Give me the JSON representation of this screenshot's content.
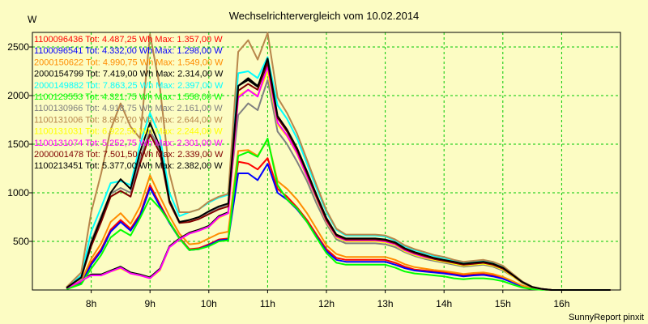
{
  "chart_data": {
    "type": "line",
    "title": "Wechselrichtervergleich vom 10.02.2014",
    "ylabel": "W",
    "footer": "SunnyReport pinxit",
    "xlim": [
      7.0,
      17.0
    ],
    "ylim": [
      0,
      2650
    ],
    "x_ticks": [
      8,
      9,
      10,
      11,
      12,
      13,
      14,
      15,
      16
    ],
    "x_tick_labels": [
      "8h",
      "9h",
      "10h",
      "11h",
      "12h",
      "13h",
      "14h",
      "15h",
      "16h"
    ],
    "y_ticks": [
      500,
      1000,
      1500,
      2000,
      2500
    ],
    "y_tick_labels": [
      "500",
      "1000",
      "1500",
      "2000",
      "2500"
    ],
    "grid": true,
    "x": [
      7.58,
      7.83,
      8.0,
      8.17,
      8.33,
      8.5,
      8.67,
      8.83,
      9.0,
      9.17,
      9.33,
      9.5,
      9.67,
      9.83,
      10.0,
      10.17,
      10.33,
      10.5,
      10.67,
      10.83,
      11.0,
      11.17,
      11.33,
      11.5,
      11.67,
      11.83,
      12.0,
      12.17,
      12.33,
      12.5,
      12.67,
      12.83,
      13.0,
      13.17,
      13.33,
      13.5,
      13.67,
      13.83,
      14.0,
      14.17,
      14.33,
      14.5,
      14.67,
      14.83,
      15.0,
      15.17,
      15.33,
      15.5,
      15.67,
      15.83,
      16.0,
      16.17,
      16.33,
      16.5,
      16.67,
      16.83
    ],
    "series": [
      {
        "name": "1100096436",
        "total": "4.487,25",
        "max": "1.357,00",
        "color": "#ff0000",
        "values": [
          10,
          80,
          280,
          420,
          620,
          720,
          630,
          780,
          1080,
          880,
          700,
          540,
          420,
          430,
          470,
          520,
          530,
          1320,
          1300,
          1240,
          1357,
          1040,
          960,
          850,
          720,
          570,
          420,
          330,
          310,
          310,
          310,
          310,
          310,
          280,
          240,
          210,
          200,
          190,
          180,
          165,
          150,
          160,
          165,
          150,
          120,
          80,
          40,
          15,
          5,
          0,
          0,
          0,
          0,
          0,
          0,
          0
        ]
      },
      {
        "name": "1100096541",
        "total": "4.332,00",
        "max": "1.298,00",
        "color": "#0000ff",
        "values": [
          10,
          70,
          260,
          400,
          600,
          700,
          610,
          760,
          1050,
          860,
          690,
          530,
          410,
          420,
          460,
          510,
          520,
          1200,
          1200,
          1130,
          1298,
          1000,
          930,
          830,
          700,
          550,
          400,
          310,
          290,
          290,
          290,
          290,
          290,
          260,
          225,
          200,
          190,
          180,
          170,
          155,
          140,
          150,
          155,
          140,
          115,
          75,
          35,
          12,
          4,
          0,
          0,
          0,
          0,
          0,
          0,
          0
        ]
      },
      {
        "name": "2000150622",
        "total": "4.990,75",
        "max": "1.549,00",
        "color": "#ff8c00",
        "values": [
          12,
          90,
          320,
          480,
          700,
          790,
          680,
          860,
          1180,
          960,
          760,
          580,
          470,
          480,
          530,
          580,
          600,
          1430,
          1440,
          1380,
          1549,
          1120,
          1040,
          930,
          790,
          630,
          460,
          370,
          340,
          340,
          340,
          340,
          340,
          310,
          265,
          235,
          220,
          205,
          195,
          180,
          165,
          175,
          180,
          165,
          135,
          90,
          45,
          18,
          6,
          0,
          0,
          0,
          0,
          0,
          0,
          0
        ]
      },
      {
        "name": "2000154799",
        "total": "7.419,00",
        "max": "2.314,00",
        "color": "#000000",
        "values": [
          20,
          100,
          160,
          160,
          200,
          240,
          180,
          160,
          130,
          220,
          450,
          530,
          590,
          620,
          660,
          760,
          800,
          2100,
          2180,
          2100,
          2314,
          1780,
          1640,
          1440,
          1200,
          960,
          720,
          560,
          520,
          520,
          520,
          520,
          510,
          480,
          420,
          380,
          350,
          320,
          300,
          280,
          260,
          270,
          280,
          260,
          220,
          150,
          80,
          30,
          10,
          0,
          0,
          0,
          0,
          0,
          0,
          0
        ]
      },
      {
        "name": "2000149882",
        "total": "7.863,25",
        "max": "2.397,00",
        "color": "#00ffff",
        "values": [
          25,
          150,
          600,
          850,
          1100,
          1120,
          1080,
          1500,
          1820,
          1580,
          1000,
          760,
          800,
          830,
          900,
          950,
          980,
          2230,
          2250,
          2180,
          2397,
          1900,
          1760,
          1560,
          1300,
          1050,
          800,
          620,
          560,
          560,
          560,
          560,
          550,
          510,
          450,
          410,
          380,
          350,
          330,
          300,
          280,
          290,
          300,
          280,
          240,
          160,
          85,
          32,
          10,
          0,
          0,
          0,
          0,
          0,
          0,
          0
        ]
      },
      {
        "name": "1100129553",
        "total": "4.321,75",
        "max": "1.558,00",
        "color": "#00ff00",
        "values": [
          8,
          60,
          220,
          360,
          540,
          620,
          560,
          740,
          950,
          840,
          700,
          530,
          410,
          420,
          450,
          500,
          510,
          1380,
          1420,
          1370,
          1558,
          1080,
          930,
          840,
          700,
          540,
          380,
          280,
          260,
          260,
          260,
          260,
          260,
          230,
          190,
          170,
          160,
          150,
          140,
          120,
          110,
          120,
          120,
          110,
          90,
          55,
          25,
          8,
          2,
          0,
          0,
          0,
          0,
          0,
          0,
          0
        ]
      },
      {
        "name": "1100130966",
        "total": "4.918,75",
        "max": "2.161,00",
        "color": "#808080",
        "values": [
          18,
          110,
          500,
          760,
          990,
          1050,
          1000,
          1350,
          1640,
          1440,
          920,
          700,
          720,
          750,
          800,
          850,
          880,
          1800,
          1920,
          1850,
          2161,
          1630,
          1500,
          1320,
          1120,
          890,
          680,
          520,
          480,
          480,
          480,
          480,
          470,
          440,
          390,
          350,
          320,
          300,
          280,
          260,
          240,
          250,
          260,
          240,
          200,
          140,
          70,
          26,
          8,
          0,
          0,
          0,
          0,
          0,
          0,
          0
        ]
      },
      {
        "name": "1100131006",
        "total": "8.887,20",
        "max": "2.644,00",
        "color": "#b8864b",
        "values": [
          30,
          180,
          800,
          1200,
          1650,
          1920,
          1680,
          1560,
          2630,
          2080,
          1200,
          800,
          800,
          830,
          910,
          960,
          990,
          2450,
          2570,
          2370,
          2644,
          1980,
          1820,
          1610,
          1340,
          1080,
          820,
          630,
          570,
          570,
          570,
          570,
          560,
          520,
          460,
          420,
          390,
          360,
          340,
          310,
          290,
          300,
          310,
          290,
          250,
          165,
          88,
          33,
          11,
          0,
          0,
          0,
          0,
          0,
          0,
          0
        ]
      },
      {
        "name": "1100131031",
        "total": "6.922,50",
        "max": "2.244,00",
        "color": "#ffff00",
        "values": [
          20,
          100,
          150,
          150,
          190,
          220,
          170,
          150,
          120,
          200,
          440,
          520,
          580,
          610,
          650,
          740,
          790,
          2000,
          2060,
          2000,
          2244,
          1700,
          1580,
          1400,
          1160,
          940,
          700,
          540,
          500,
          500,
          500,
          500,
          490,
          460,
          400,
          360,
          330,
          310,
          290,
          270,
          250,
          260,
          270,
          250,
          210,
          140,
          75,
          28,
          9,
          0,
          0,
          0,
          0,
          0,
          0,
          0
        ]
      },
      {
        "name": "1100131074",
        "total": "5.252,75",
        "max": "2.301,00",
        "color": "#ff00ff",
        "values": [
          18,
          95,
          150,
          150,
          190,
          230,
          170,
          150,
          120,
          210,
          440,
          520,
          580,
          610,
          650,
          750,
          790,
          1980,
          2060,
          1990,
          2301,
          1720,
          1590,
          1410,
          1170,
          950,
          710,
          550,
          510,
          510,
          510,
          510,
          500,
          470,
          410,
          370,
          340,
          320,
          300,
          280,
          260,
          270,
          280,
          260,
          220,
          150,
          80,
          30,
          10,
          0,
          0,
          0,
          0,
          0,
          0,
          0
        ]
      },
      {
        "name": "2000001478",
        "total": "7.501,50",
        "max": "2.339,00",
        "color": "#800000",
        "values": [
          22,
          130,
          450,
          700,
          960,
          1020,
          960,
          1300,
          1600,
          1410,
          900,
          690,
          700,
          730,
          780,
          830,
          860,
          2050,
          2120,
          2060,
          2339,
          1770,
          1630,
          1440,
          1200,
          960,
          720,
          560,
          520,
          520,
          520,
          520,
          510,
          480,
          420,
          380,
          350,
          320,
          300,
          280,
          260,
          270,
          280,
          260,
          220,
          150,
          80,
          30,
          10,
          0,
          0,
          0,
          0,
          0,
          0,
          0
        ]
      },
      {
        "name": "1100213451",
        "total": "5.377,00",
        "max": "2.382,00",
        "color": "#000000",
        "values": [
          22,
          130,
          480,
          740,
          1000,
          1140,
          1040,
          1420,
          1720,
          1470,
          920,
          700,
          720,
          750,
          810,
          860,
          890,
          2100,
          2160,
          2090,
          2382,
          1790,
          1650,
          1460,
          1220,
          980,
          740,
          570,
          530,
          530,
          530,
          530,
          520,
          490,
          430,
          390,
          360,
          330,
          310,
          290,
          270,
          280,
          290,
          270,
          230,
          155,
          82,
          31,
          10,
          0,
          0,
          0,
          0,
          0,
          0,
          0
        ]
      }
    ]
  },
  "legend_labels": {
    "tot": "Tot:",
    "wh_max": "Wh Max:",
    "unit": "W"
  }
}
